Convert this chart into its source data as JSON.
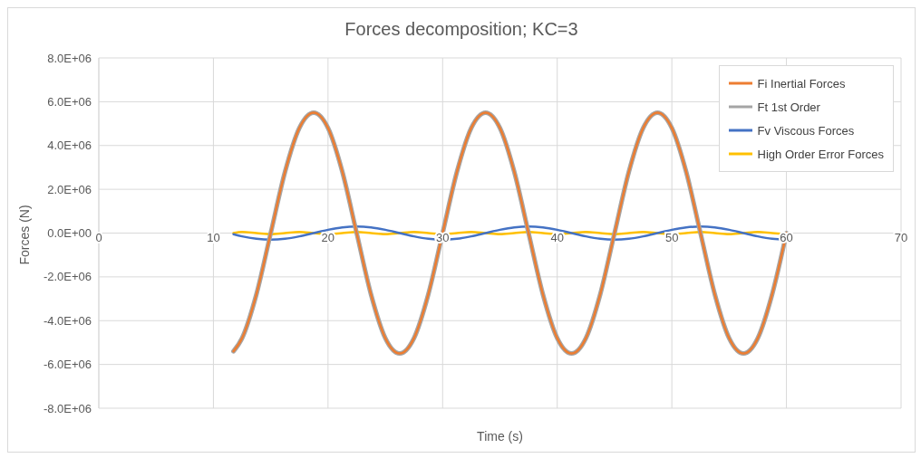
{
  "chart_data": {
    "type": "line",
    "title": "Forces decomposition;  KC=3",
    "xlabel": "Time (s)",
    "ylabel": "Forces (N)",
    "x": [
      11.75,
      12.5,
      13.75,
      15,
      16.25,
      17.5,
      18.75,
      20,
      21.25,
      22.5,
      23.75,
      25,
      26.25,
      27.5,
      28.75,
      30,
      31.25,
      32.5,
      33.75,
      35,
      36.25,
      37.5,
      38.75,
      40,
      41.25,
      42.5,
      43.75,
      45,
      46.25,
      47.5,
      48.75,
      50,
      51.25,
      52.5,
      53.75,
      55,
      56.25,
      57.5,
      58.75,
      60
    ],
    "series": [
      {
        "name": "Fi Inertial Forces",
        "color": "#ed7d31",
        "values": [
          -5400000,
          -4800000,
          -2800000,
          0,
          2800000,
          4800000,
          5500000,
          4800000,
          2800000,
          0,
          -2800000,
          -4800000,
          -5500000,
          -4800000,
          -2800000,
          0,
          2800000,
          4800000,
          5500000,
          4800000,
          2800000,
          0,
          -2800000,
          -4800000,
          -5500000,
          -4800000,
          -2800000,
          0,
          2800000,
          4800000,
          5500000,
          4800000,
          2800000,
          0,
          -2800000,
          -4800000,
          -5500000,
          -4800000,
          -2800000,
          0
        ]
      },
      {
        "name": "Ft 1st Order",
        "color": "#a5a5a5",
        "values": [
          -5400000,
          -4800000,
          -2800000,
          0,
          2800000,
          4800000,
          5500000,
          4800000,
          2800000,
          0,
          -2800000,
          -4800000,
          -5500000,
          -4800000,
          -2800000,
          0,
          2800000,
          4800000,
          5500000,
          4800000,
          2800000,
          0,
          -2800000,
          -4800000,
          -5500000,
          -4800000,
          -2800000,
          0,
          2800000,
          4800000,
          5500000,
          4800000,
          2800000,
          0,
          -2800000,
          -4800000,
          -5500000,
          -4800000,
          -2800000,
          0
        ]
      },
      {
        "name": "Fv Viscous Forces",
        "color": "#4472c4",
        "values": [
          -50000,
          -150000,
          -260000,
          -300000,
          -260000,
          -150000,
          0,
          150000,
          260000,
          300000,
          260000,
          150000,
          0,
          -150000,
          -260000,
          -300000,
          -260000,
          -150000,
          0,
          150000,
          260000,
          300000,
          260000,
          150000,
          0,
          -150000,
          -260000,
          -300000,
          -260000,
          -150000,
          0,
          150000,
          260000,
          300000,
          260000,
          150000,
          0,
          -150000,
          -260000,
          -300000
        ]
      },
      {
        "name": "High Order Error Forces",
        "color": "#ffc000",
        "values": [
          0,
          50000,
          0,
          -50000,
          0,
          50000,
          0,
          -50000,
          0,
          50000,
          0,
          -50000,
          0,
          50000,
          0,
          -50000,
          0,
          50000,
          0,
          -50000,
          0,
          50000,
          0,
          -50000,
          0,
          50000,
          0,
          -50000,
          0,
          50000,
          0,
          -50000,
          0,
          50000,
          0,
          -50000,
          0,
          50000,
          0,
          -50000
        ]
      }
    ],
    "xlim": [
      0,
      70
    ],
    "xticks": [
      0,
      10,
      20,
      30,
      40,
      50,
      60,
      70
    ],
    "ylim": [
      -8000000,
      8000000
    ],
    "yticks": [
      {
        "value": -8000000,
        "label": "-8.0E+06"
      },
      {
        "value": -6000000,
        "label": "-6.0E+06"
      },
      {
        "value": -4000000,
        "label": "-4.0E+06"
      },
      {
        "value": -2000000,
        "label": "-2.0E+06"
      },
      {
        "value": 0,
        "label": "0.0E+00"
      },
      {
        "value": 2000000,
        "label": "2.0E+06"
      },
      {
        "value": 4000000,
        "label": "4.0E+06"
      },
      {
        "value": 6000000,
        "label": "6.0E+06"
      },
      {
        "value": 8000000,
        "label": "8.0E+06"
      }
    ],
    "grid": true,
    "legend": "top right",
    "marker": "none",
    "line_style": "solid"
  }
}
